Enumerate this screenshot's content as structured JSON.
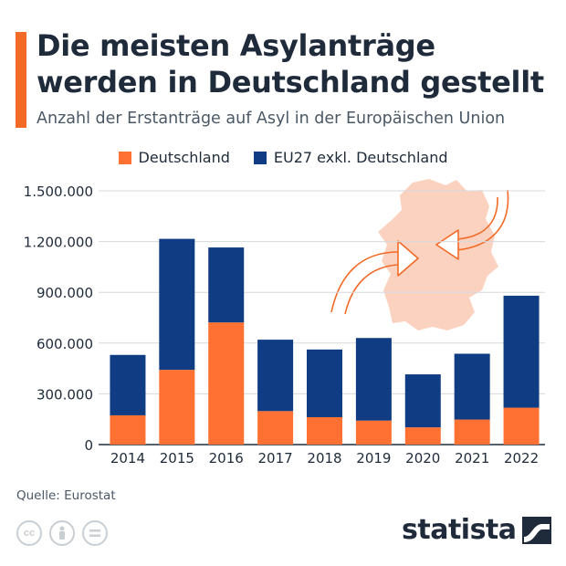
{
  "header": {
    "title": "Die meisten Asylanträge werden in Deutschland gestellt",
    "subtitle": "Anzahl der Erstanträge auf Asyl in der Europäischen Union"
  },
  "colors": {
    "accent": "#f26a25",
    "germany": "#fe7133",
    "eu27": "#0f3c82",
    "map": "#fbd2c0"
  },
  "chart_data": {
    "type": "bar",
    "stacked": true,
    "categories": [
      "2014",
      "2015",
      "2016",
      "2017",
      "2018",
      "2019",
      "2020",
      "2021",
      "2022"
    ],
    "series": [
      {
        "name": "Deutschland",
        "values": [
          173000,
          442000,
          722000,
          198000,
          162000,
          142000,
          102000,
          148000,
          218000
        ]
      },
      {
        "name": "EU27 exkl. Deutschland",
        "values": [
          357000,
          774000,
          443000,
          422000,
          400000,
          488000,
          313000,
          389000,
          662000
        ]
      }
    ],
    "ylim": [
      0,
      1500000
    ],
    "yticks": [
      "0",
      "300.000",
      "600.000",
      "900.000",
      "1.200.000",
      "1.500.000"
    ],
    "ytick_values": [
      0,
      300000,
      600000,
      900000,
      1200000,
      1500000
    ],
    "grid": true,
    "legend": "top-center",
    "xlabel": "",
    "ylabel": ""
  },
  "footer": {
    "source": "Quelle: Eurostat",
    "brand": "statista",
    "icons": [
      "cc-icon",
      "person-icon",
      "equals-icon"
    ]
  }
}
